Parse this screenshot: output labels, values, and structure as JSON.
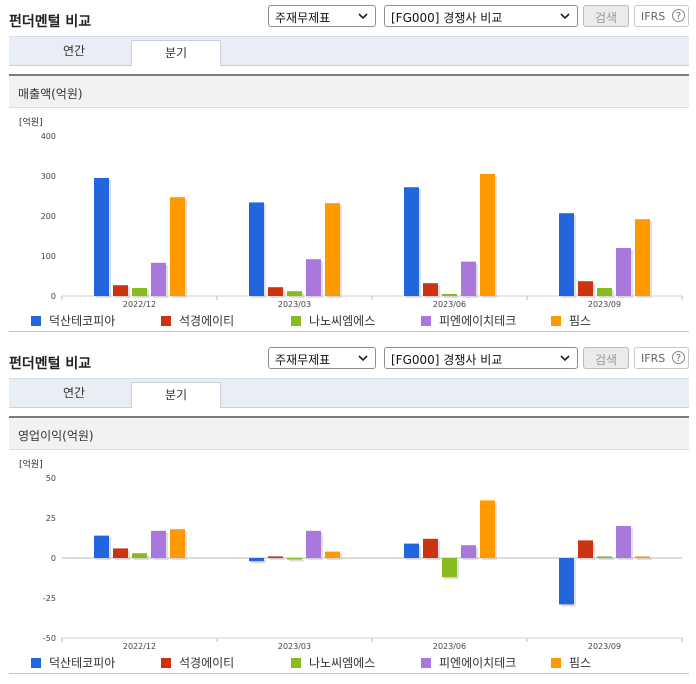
{
  "panels": [
    {
      "title": "펀더멘털 비교",
      "select_a": "주재무제표",
      "select_b": "[FG000] 경쟁사 비교",
      "search_label": "검색",
      "ifrs_label": "IFRS",
      "help_glyph": "?",
      "tabs": [
        {
          "label": "연간",
          "active": false
        },
        {
          "label": "분기",
          "active": true
        }
      ],
      "card_title": "매출액(억원)",
      "chart_data": {
        "type": "bar",
        "unit_label": "[억원]",
        "ylim": [
          0,
          400
        ],
        "yticks": [
          0,
          100,
          200,
          300,
          400
        ],
        "categories": [
          "2022/12",
          "2023/03",
          "2023/06",
          "2023/09"
        ],
        "series": [
          {
            "name": "덕산테코피아",
            "color": "#2266dd",
            "values": [
              295,
              234,
              272,
              207
            ]
          },
          {
            "name": "석경에이티",
            "color": "#cc3311",
            "values": [
              27,
              22,
              32,
              37
            ]
          },
          {
            "name": "나노씨엠에스",
            "color": "#88bb22",
            "values": [
              20,
              12,
              5,
              20
            ]
          },
          {
            "name": "피엔에이치테크",
            "color": "#aa77dd",
            "values": [
              83,
              92,
              86,
              120
            ]
          },
          {
            "name": "핌스",
            "color": "#ff9900",
            "values": [
              247,
              232,
              305,
              192
            ]
          }
        ]
      }
    },
    {
      "title": "펀더멘털 비교",
      "select_a": "주재무제표",
      "select_b": "[FG000] 경쟁사 비교",
      "search_label": "검색",
      "ifrs_label": "IFRS",
      "help_glyph": "?",
      "tabs": [
        {
          "label": "연간",
          "active": false
        },
        {
          "label": "분기",
          "active": true
        }
      ],
      "card_title": "영업이익(억원)",
      "chart_data": {
        "type": "bar",
        "unit_label": "[억원]",
        "ylim": [
          -50,
          50
        ],
        "yticks": [
          -50,
          -25,
          0,
          25,
          50
        ],
        "categories": [
          "2022/12",
          "2023/03",
          "2023/06",
          "2023/09"
        ],
        "series": [
          {
            "name": "덕산테코피아",
            "color": "#2266dd",
            "values": [
              14,
              -2,
              9,
              -29
            ]
          },
          {
            "name": "석경에이티",
            "color": "#cc3311",
            "values": [
              6,
              1,
              12,
              11
            ]
          },
          {
            "name": "나노씨엠에스",
            "color": "#88bb22",
            "values": [
              3,
              -1,
              -12,
              1
            ]
          },
          {
            "name": "피엔에이치테크",
            "color": "#aa77dd",
            "values": [
              17,
              17,
              8,
              20
            ]
          },
          {
            "name": "핌스",
            "color": "#ff9900",
            "values": [
              18,
              4,
              36,
              1
            ]
          }
        ]
      }
    }
  ]
}
